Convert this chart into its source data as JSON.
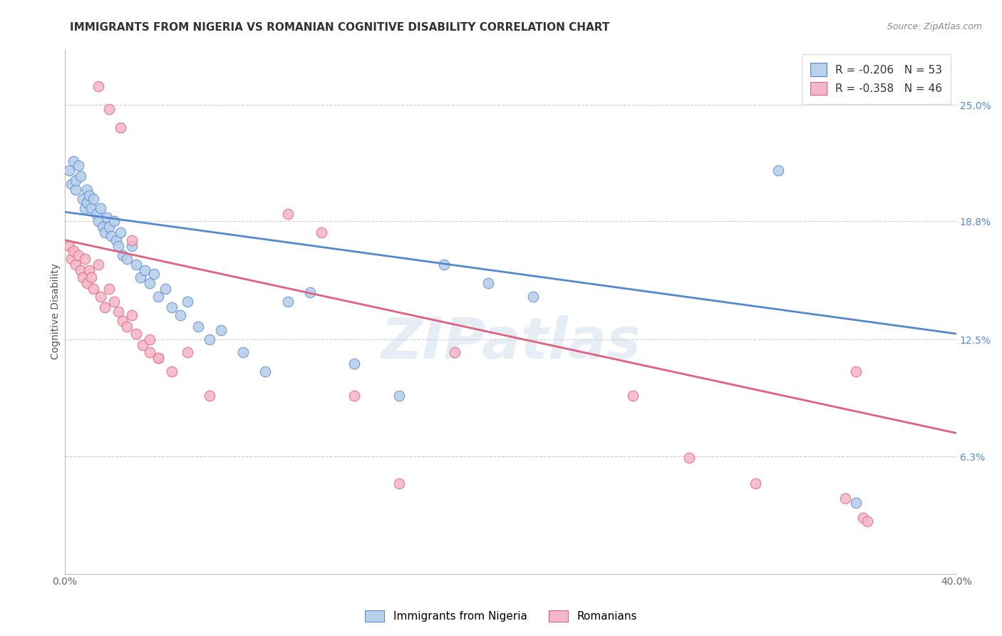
{
  "title": "IMMIGRANTS FROM NIGERIA VS ROMANIAN COGNITIVE DISABILITY CORRELATION CHART",
  "source": "Source: ZipAtlas.com",
  "ylabel": "Cognitive Disability",
  "xlim": [
    0.0,
    0.4
  ],
  "ylim": [
    0.0,
    0.28
  ],
  "yticks": [
    0.0625,
    0.125,
    0.188,
    0.25
  ],
  "ytick_labels": [
    "6.3%",
    "12.5%",
    "18.8%",
    "25.0%"
  ],
  "xticks": [
    0.0,
    0.1,
    0.2,
    0.3,
    0.4
  ],
  "xtick_labels": [
    "0.0%",
    "",
    "",
    "",
    "40.0%"
  ],
  "grid_color": "#cccccc",
  "background_color": "#ffffff",
  "nigeria_color": "#b8d0ea",
  "romanian_color": "#f5b8c8",
  "nigeria_line_color": "#5588cc",
  "romanian_line_color": "#e06080",
  "legend_r_nigeria": "R = -0.206",
  "legend_n_nigeria": "N = 53",
  "legend_r_romanian": "R = -0.358",
  "legend_n_romanian": "N = 46",
  "nigeria_points_x": [
    0.002,
    0.003,
    0.004,
    0.005,
    0.005,
    0.006,
    0.007,
    0.008,
    0.009,
    0.01,
    0.01,
    0.011,
    0.012,
    0.013,
    0.014,
    0.015,
    0.016,
    0.017,
    0.018,
    0.019,
    0.02,
    0.021,
    0.022,
    0.023,
    0.024,
    0.025,
    0.026,
    0.028,
    0.03,
    0.032,
    0.034,
    0.036,
    0.038,
    0.04,
    0.042,
    0.045,
    0.048,
    0.052,
    0.055,
    0.06,
    0.065,
    0.07,
    0.08,
    0.09,
    0.1,
    0.11,
    0.13,
    0.15,
    0.17,
    0.19,
    0.21,
    0.32,
    0.355
  ],
  "nigeria_points_y": [
    0.215,
    0.208,
    0.22,
    0.205,
    0.21,
    0.218,
    0.212,
    0.2,
    0.195,
    0.205,
    0.198,
    0.202,
    0.195,
    0.2,
    0.192,
    0.188,
    0.195,
    0.185,
    0.182,
    0.19,
    0.185,
    0.18,
    0.188,
    0.178,
    0.175,
    0.182,
    0.17,
    0.168,
    0.175,
    0.165,
    0.158,
    0.162,
    0.155,
    0.16,
    0.148,
    0.152,
    0.142,
    0.138,
    0.145,
    0.132,
    0.125,
    0.13,
    0.118,
    0.108,
    0.145,
    0.15,
    0.112,
    0.095,
    0.165,
    0.155,
    0.148,
    0.215,
    0.038
  ],
  "romanian_points_x": [
    0.002,
    0.003,
    0.004,
    0.005,
    0.006,
    0.007,
    0.008,
    0.009,
    0.01,
    0.011,
    0.012,
    0.013,
    0.015,
    0.016,
    0.018,
    0.02,
    0.022,
    0.024,
    0.026,
    0.028,
    0.03,
    0.032,
    0.035,
    0.038,
    0.042,
    0.048,
    0.055,
    0.065,
    0.015,
    0.02,
    0.025,
    0.03,
    0.038,
    0.042,
    0.1,
    0.115,
    0.13,
    0.15,
    0.175,
    0.255,
    0.28,
    0.31,
    0.35,
    0.355,
    0.358,
    0.36
  ],
  "romanian_points_y": [
    0.175,
    0.168,
    0.172,
    0.165,
    0.17,
    0.162,
    0.158,
    0.168,
    0.155,
    0.162,
    0.158,
    0.152,
    0.165,
    0.148,
    0.142,
    0.152,
    0.145,
    0.14,
    0.135,
    0.132,
    0.138,
    0.128,
    0.122,
    0.125,
    0.115,
    0.108,
    0.118,
    0.095,
    0.26,
    0.248,
    0.238,
    0.178,
    0.118,
    0.115,
    0.192,
    0.182,
    0.095,
    0.048,
    0.118,
    0.095,
    0.062,
    0.048,
    0.04,
    0.108,
    0.03,
    0.028
  ],
  "nigeria_line_y_at_0": 0.193,
  "nigeria_line_y_at_40": 0.128,
  "romanian_line_y_at_0": 0.178,
  "romanian_line_y_at_40": 0.075,
  "watermark": "ZIPatlas",
  "title_fontsize": 11,
  "axis_label_fontsize": 10,
  "tick_fontsize": 10,
  "legend_fontsize": 11
}
